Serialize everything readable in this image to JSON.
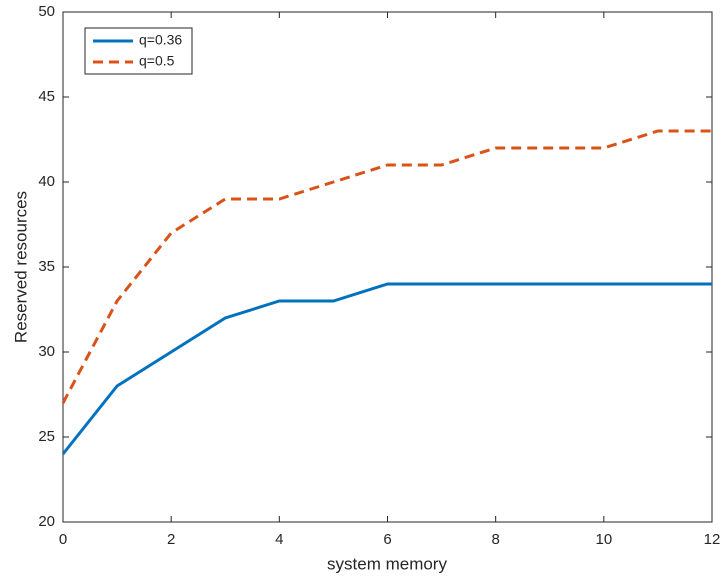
{
  "chart_data": {
    "type": "line",
    "xlabel": "system memory",
    "ylabel": "Reserved resources",
    "x": [
      0,
      1,
      2,
      3,
      4,
      5,
      6,
      7,
      8,
      9,
      10,
      11,
      12
    ],
    "series": [
      {
        "name": "q=0.36",
        "color": "#0072bd",
        "dash": "solid",
        "values": [
          24,
          28,
          30,
          32,
          33,
          33,
          34,
          34,
          34,
          34,
          34,
          34,
          34
        ]
      },
      {
        "name": "q=0.5",
        "color": "#d95319",
        "dash": "dashed",
        "values": [
          27,
          33,
          37,
          39,
          39,
          40,
          41,
          41,
          42,
          42,
          42,
          43,
          43
        ]
      }
    ],
    "xlim": [
      0,
      12
    ],
    "xticks": [
      0,
      2,
      4,
      6,
      8,
      10,
      12
    ],
    "ylim": [
      20,
      50
    ],
    "yticks": [
      20,
      25,
      30,
      35,
      40,
      45,
      50
    ],
    "grid": false,
    "legend": "northwest"
  }
}
